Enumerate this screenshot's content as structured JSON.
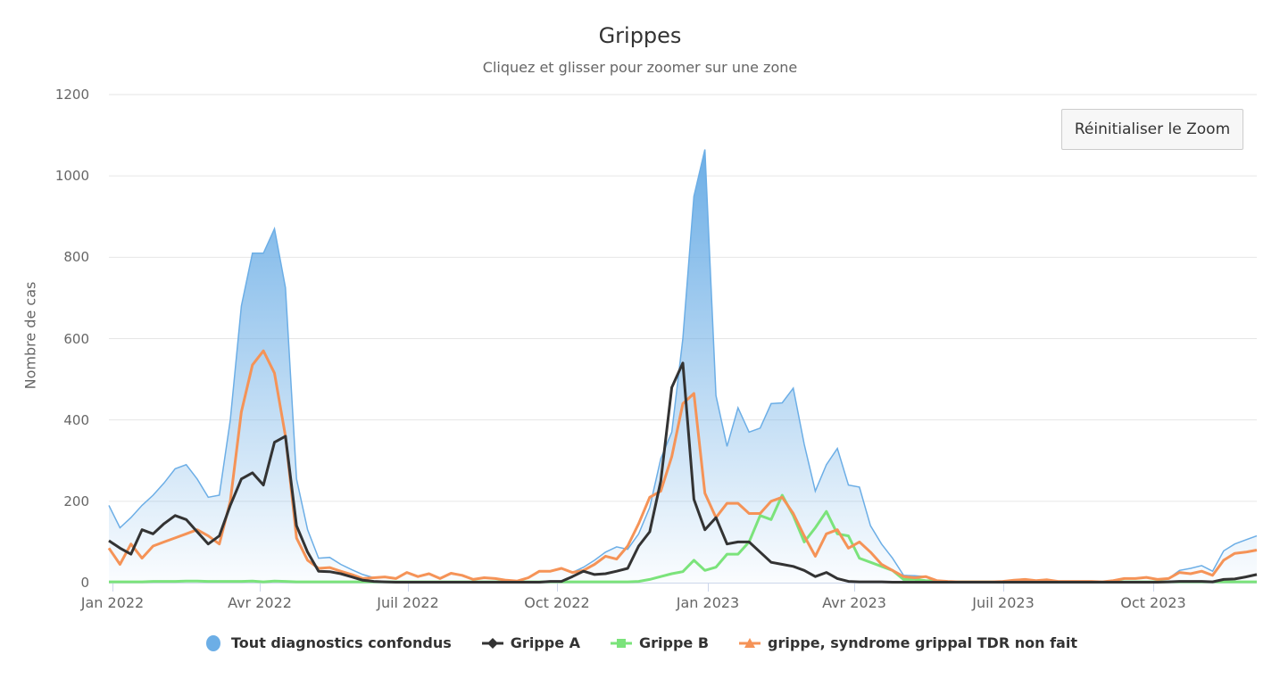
{
  "header": {
    "title": "Grippes",
    "subtitle": "Cliquez et glisser pour zoomer sur une zone"
  },
  "controls": {
    "reset_zoom_label": "Réinitialiser le Zoom"
  },
  "axes": {
    "ylabel": "Nombre de cas",
    "yticks": [
      "0",
      "200",
      "400",
      "600",
      "800",
      "1000",
      "1200"
    ],
    "xticks": [
      "Jan 2022",
      "Avr 2022",
      "Juil 2022",
      "Oct 2022",
      "Jan 2023",
      "Avr 2023",
      "Juil 2023",
      "Oct 2023"
    ]
  },
  "legend": {
    "items": [
      {
        "label": "Tout diagnostics confondus",
        "color": "#6caee6",
        "symbol": "circle"
      },
      {
        "label": "Grippe A",
        "color": "#333333",
        "symbol": "diamond"
      },
      {
        "label": "Grippe B",
        "color": "#7be37b",
        "symbol": "square"
      },
      {
        "label": "grippe, syndrome grippal TDR non fait",
        "color": "#f59357",
        "symbol": "triangle"
      }
    ]
  },
  "colors": {
    "total": "#6caee6",
    "grippe_a": "#333333",
    "grippe_b": "#7be37b",
    "tdr": "#f59357",
    "grid": "#e6e6e6",
    "axis": "#ccd6eb"
  },
  "chart_data": {
    "type": "line",
    "title": "Grippes",
    "subtitle": "Cliquez et glisser pour zoomer sur une zone",
    "xlabel": "",
    "ylabel": "Nombre de cas",
    "ylim": [
      0,
      1200
    ],
    "x_start": "2021-12-27",
    "x_interval": "weekly",
    "x_tick_labels": [
      "Jan 2022",
      "Avr 2022",
      "Juil 2022",
      "Oct 2022",
      "Jan 2023",
      "Avr 2023",
      "Juil 2023",
      "Oct 2023"
    ],
    "grid": true,
    "legend_position": "bottom",
    "series": [
      {
        "name": "Tout diagnostics confondus",
        "type": "area",
        "values": [
          190,
          135,
          160,
          190,
          215,
          245,
          280,
          290,
          255,
          210,
          215,
          400,
          680,
          810,
          810,
          870,
          725,
          255,
          130,
          60,
          62,
          45,
          32,
          20,
          12,
          14,
          10,
          25,
          15,
          22,
          10,
          23,
          18,
          8,
          12,
          10,
          6,
          4,
          12,
          28,
          28,
          35,
          25,
          38,
          55,
          75,
          88,
          82,
          120,
          185,
          305,
          370,
          600,
          950,
          1065,
          460,
          335,
          430,
          370,
          380,
          440,
          442,
          478,
          340,
          225,
          290,
          330,
          240,
          235,
          140,
          95,
          60,
          18,
          17,
          15,
          5,
          3,
          2,
          2,
          2,
          2,
          3,
          6,
          8,
          5,
          7,
          3,
          3,
          3,
          3,
          2,
          5,
          10,
          10,
          13,
          8,
          10,
          30,
          35,
          42,
          28,
          78,
          95,
          105,
          115
        ],
        "color": "#6caee6"
      },
      {
        "name": "Grippe A",
        "type": "line",
        "values": [
          103,
          85,
          70,
          130,
          120,
          145,
          165,
          155,
          125,
          95,
          115,
          190,
          255,
          270,
          240,
          345,
          360,
          140,
          75,
          28,
          27,
          22,
          14,
          6,
          3,
          2,
          1,
          1,
          1,
          1,
          1,
          1,
          1,
          1,
          1,
          1,
          1,
          1,
          1,
          1,
          3,
          3,
          15,
          28,
          20,
          22,
          28,
          35,
          90,
          125,
          250,
          480,
          540,
          205,
          130,
          160,
          95,
          100,
          100,
          75,
          50,
          45,
          40,
          30,
          15,
          25,
          10,
          3,
          2,
          2,
          2,
          1,
          1,
          1,
          1,
          1,
          1,
          1,
          1,
          1,
          1,
          1,
          1,
          1,
          1,
          1,
          1,
          1,
          1,
          1,
          1,
          1,
          1,
          1,
          1,
          1,
          2,
          3,
          3,
          3,
          2,
          8,
          9,
          14,
          20
        ],
        "color": "#333333"
      },
      {
        "name": "Grippe B",
        "type": "line",
        "values": [
          2,
          2,
          2,
          2,
          3,
          3,
          3,
          4,
          4,
          3,
          3,
          3,
          3,
          4,
          2,
          4,
          3,
          2,
          2,
          2,
          2,
          2,
          2,
          2,
          2,
          2,
          2,
          2,
          2,
          2,
          2,
          2,
          2,
          2,
          2,
          2,
          2,
          2,
          2,
          2,
          2,
          2,
          2,
          2,
          2,
          2,
          2,
          2,
          3,
          8,
          15,
          22,
          27,
          55,
          30,
          38,
          70,
          70,
          100,
          165,
          155,
          215,
          165,
          100,
          135,
          175,
          120,
          115,
          60,
          50,
          40,
          30,
          8,
          8,
          5,
          4,
          2,
          2,
          2,
          2,
          2,
          2,
          2,
          2,
          2,
          2,
          2,
          2,
          2,
          2,
          2,
          2,
          2,
          2,
          2,
          2,
          2,
          2,
          2,
          2,
          2,
          2,
          2,
          2,
          2
        ],
        "color": "#7be37b"
      },
      {
        "name": "grippe, syndrome grippal TDR non fait",
        "type": "line",
        "values": [
          85,
          45,
          95,
          60,
          90,
          100,
          110,
          120,
          130,
          115,
          95,
          200,
          420,
          535,
          570,
          515,
          360,
          110,
          55,
          35,
          37,
          28,
          20,
          10,
          12,
          14,
          10,
          25,
          15,
          22,
          10,
          23,
          18,
          8,
          12,
          10,
          6,
          4,
          12,
          28,
          28,
          35,
          25,
          30,
          45,
          65,
          58,
          90,
          145,
          210,
          225,
          310,
          440,
          465,
          220,
          160,
          195,
          195,
          170,
          170,
          200,
          210,
          170,
          115,
          65,
          120,
          130,
          85,
          100,
          75,
          45,
          30,
          15,
          12,
          15,
          5,
          3,
          2,
          2,
          2,
          2,
          3,
          6,
          8,
          5,
          7,
          3,
          3,
          3,
          3,
          2,
          5,
          10,
          10,
          13,
          8,
          10,
          25,
          22,
          28,
          18,
          55,
          72,
          75,
          80
        ],
        "color": "#f59357"
      }
    ]
  }
}
